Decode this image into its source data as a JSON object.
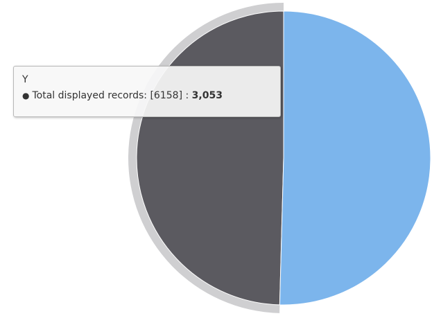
{
  "chart_data": {
    "type": "pie",
    "title": "",
    "total": 6158,
    "slices": [
      {
        "name": "Y",
        "value": 3053,
        "color": "#5b5a60",
        "hovered": true
      },
      {
        "name": "",
        "value": 3105,
        "color": "#7cb5ec",
        "hovered": false
      }
    ],
    "hover_halo_color": "#cfcfd1"
  },
  "tooltip": {
    "header": "Y",
    "bullet": "●",
    "series_label": "Total displayed records: [6158] : ",
    "value_text": "3,053"
  }
}
